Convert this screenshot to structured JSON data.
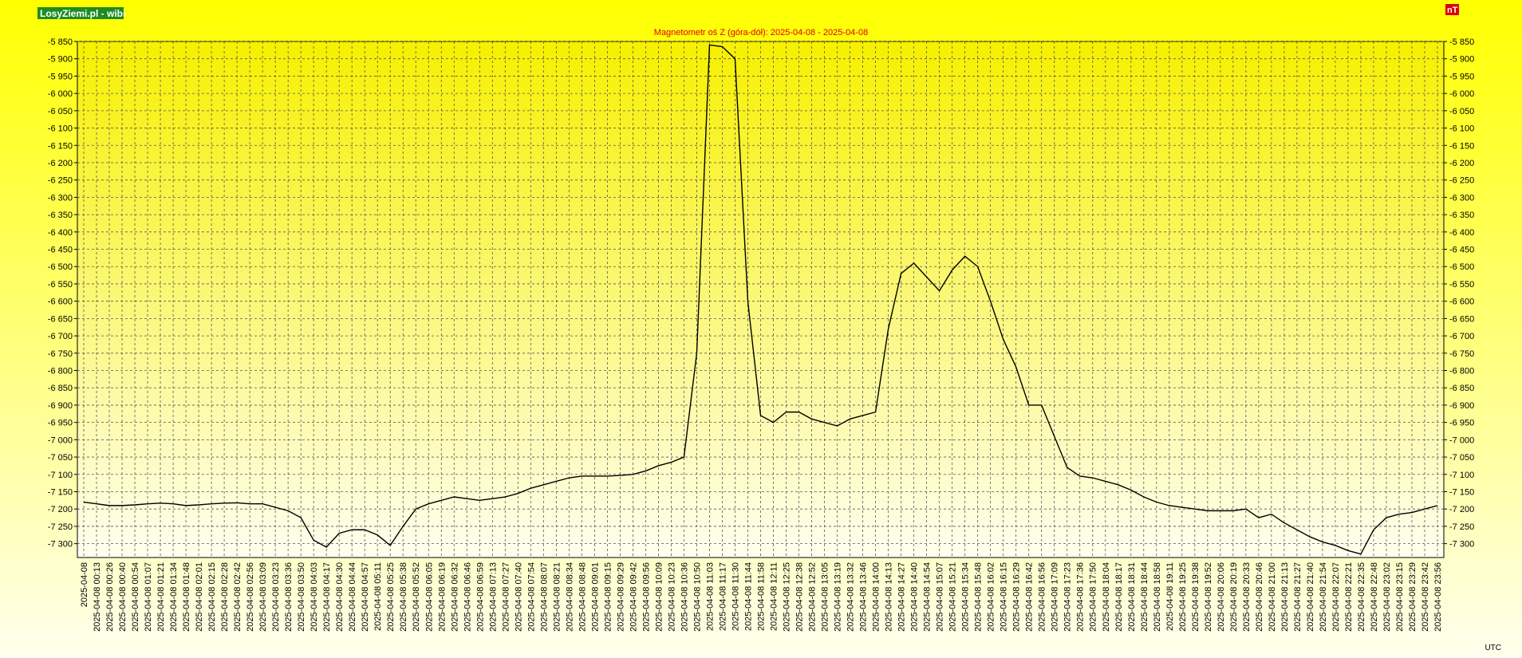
{
  "chart_data": {
    "type": "line",
    "badge": "LosyZiemi.pl - wibi",
    "unit": "nT",
    "x_unit": "UTC",
    "title": "Magnetometr oś Z (góra-dół): 2025-04-08 - 2025-04-08",
    "color": "#000000",
    "grid": true,
    "ylim": [
      -7340,
      -5850
    ],
    "yticks": [
      {
        "value": -5850,
        "label": "-5 850"
      },
      {
        "value": -5900,
        "label": "-5 900"
      },
      {
        "value": -5950,
        "label": "-5 950"
      },
      {
        "value": -6000,
        "label": "-6 000"
      },
      {
        "value": -6050,
        "label": "-6 050"
      },
      {
        "value": -6100,
        "label": "-6 100"
      },
      {
        "value": -6150,
        "label": "-6 150"
      },
      {
        "value": -6200,
        "label": "-6 200"
      },
      {
        "value": -6250,
        "label": "-6 250"
      },
      {
        "value": -6300,
        "label": "-6 300"
      },
      {
        "value": -6350,
        "label": "-6 350"
      },
      {
        "value": -6400,
        "label": "-6 400"
      },
      {
        "value": -6450,
        "label": "-6 450"
      },
      {
        "value": -6500,
        "label": "-6 500"
      },
      {
        "value": -6550,
        "label": "-6 550"
      },
      {
        "value": -6600,
        "label": "-6 600"
      },
      {
        "value": -6650,
        "label": "-6 650"
      },
      {
        "value": -6700,
        "label": "-6 700"
      },
      {
        "value": -6750,
        "label": "-6 750"
      },
      {
        "value": -6800,
        "label": "-6 800"
      },
      {
        "value": -6850,
        "label": "-6 850"
      },
      {
        "value": -6900,
        "label": "-6 900"
      },
      {
        "value": -6950,
        "label": "-6 950"
      },
      {
        "value": -7000,
        "label": "-7 000"
      },
      {
        "value": -7050,
        "label": "-7 050"
      },
      {
        "value": -7100,
        "label": "-7 100"
      },
      {
        "value": -7150,
        "label": "-7 150"
      },
      {
        "value": -7200,
        "label": "-7 200"
      },
      {
        "value": -7250,
        "label": "-7 250"
      },
      {
        "value": -7300,
        "label": "-7 300"
      }
    ],
    "categories": [
      "2025-04-08",
      "2025-04-08 00:13",
      "2025-04-08 00:26",
      "2025-04-08 00:40",
      "2025-04-08 00:54",
      "2025-04-08 01:07",
      "2025-04-08 01:21",
      "2025-04-08 01:34",
      "2025-04-08 01:48",
      "2025-04-08 02:01",
      "2025-04-08 02:15",
      "2025-04-08 02:28",
      "2025-04-08 02:42",
      "2025-04-08 02:56",
      "2025-04-08 03:09",
      "2025-04-08 03:23",
      "2025-04-08 03:36",
      "2025-04-08 03:50",
      "2025-04-08 04:03",
      "2025-04-08 04:17",
      "2025-04-08 04:30",
      "2025-04-08 04:44",
      "2025-04-08 04:57",
      "2025-04-08 05:11",
      "2025-04-08 05:25",
      "2025-04-08 05:38",
      "2025-04-08 05:52",
      "2025-04-08 06:05",
      "2025-04-08 06:19",
      "2025-04-08 06:32",
      "2025-04-08 06:46",
      "2025-04-08 06:59",
      "2025-04-08 07:13",
      "2025-04-08 07:27",
      "2025-04-08 07:40",
      "2025-04-08 07:54",
      "2025-04-08 08:07",
      "2025-04-08 08:21",
      "2025-04-08 08:34",
      "2025-04-08 08:48",
      "2025-04-08 09:01",
      "2025-04-08 09:15",
      "2025-04-08 09:29",
      "2025-04-08 09:42",
      "2025-04-08 09:56",
      "2025-04-08 10:09",
      "2025-04-08 10:23",
      "2025-04-08 10:36",
      "2025-04-08 10:50",
      "2025-04-08 11:03",
      "2025-04-08 11:17",
      "2025-04-08 11:30",
      "2025-04-08 11:44",
      "2025-04-08 11:58",
      "2025-04-08 12:11",
      "2025-04-08 12:25",
      "2025-04-08 12:38",
      "2025-04-08 12:52",
      "2025-04-08 13:05",
      "2025-04-08 13:19",
      "2025-04-08 13:32",
      "2025-04-08 13:46",
      "2025-04-08 14:00",
      "2025-04-08 14:13",
      "2025-04-08 14:27",
      "2025-04-08 14:40",
      "2025-04-08 14:54",
      "2025-04-08 15:07",
      "2025-04-08 15:21",
      "2025-04-08 15:34",
      "2025-04-08 15:48",
      "2025-04-08 16:02",
      "2025-04-08 16:15",
      "2025-04-08 16:29",
      "2025-04-08 16:42",
      "2025-04-08 16:56",
      "2025-04-08 17:09",
      "2025-04-08 17:23",
      "2025-04-08 17:36",
      "2025-04-08 17:50",
      "2025-04-08 18:04",
      "2025-04-08 18:17",
      "2025-04-08 18:31",
      "2025-04-08 18:44",
      "2025-04-08 18:58",
      "2025-04-08 19:11",
      "2025-04-08 19:25",
      "2025-04-08 19:38",
      "2025-04-08 19:52",
      "2025-04-08 20:06",
      "2025-04-08 20:19",
      "2025-04-08 20:33",
      "2025-04-08 20:46",
      "2025-04-08 21:00",
      "2025-04-08 21:13",
      "2025-04-08 21:27",
      "2025-04-08 21:40",
      "2025-04-08 21:54",
      "2025-04-08 22:07",
      "2025-04-08 22:21",
      "2025-04-08 22:35",
      "2025-04-08 22:48",
      "2025-04-08 23:02",
      "2025-04-08 23:15",
      "2025-04-08 23:29",
      "2025-04-08 23:42",
      "2025-04-08 23:56"
    ],
    "values": [
      -7180,
      -7185,
      -7190,
      -7190,
      -7188,
      -7185,
      -7183,
      -7185,
      -7190,
      -7188,
      -7185,
      -7183,
      -7182,
      -7185,
      -7185,
      -7195,
      -7205,
      -7225,
      -7290,
      -7310,
      -7270,
      -7260,
      -7260,
      -7275,
      -7305,
      -7250,
      -7200,
      -7185,
      -7175,
      -7165,
      -7170,
      -7175,
      -7170,
      -7165,
      -7155,
      -7140,
      -7130,
      -7120,
      -7110,
      -7105,
      -7105,
      -7105,
      -7103,
      -7100,
      -7090,
      -7075,
      -7065,
      -7050,
      -6750,
      -5860,
      -5865,
      -5900,
      -6600,
      -6930,
      -6950,
      -6920,
      -6920,
      -6940,
      -6950,
      -6960,
      -6940,
      -6930,
      -6920,
      -6680,
      -6520,
      -6490,
      -6530,
      -6570,
      -6510,
      -6470,
      -6500,
      -6600,
      -6710,
      -6790,
      -6900,
      -6900,
      -6990,
      -7080,
      -7105,
      -7110,
      -7120,
      -7130,
      -7145,
      -7165,
      -7180,
      -7190,
      -7195,
      -7200,
      -7205,
      -7205,
      -7205,
      -7200,
      -7225,
      -7215,
      -7240,
      -7260,
      -7280,
      -7295,
      -7305,
      -7320,
      -7330,
      -7260,
      -7225,
      -7215,
      -7210,
      -7200,
      -7190
    ]
  }
}
